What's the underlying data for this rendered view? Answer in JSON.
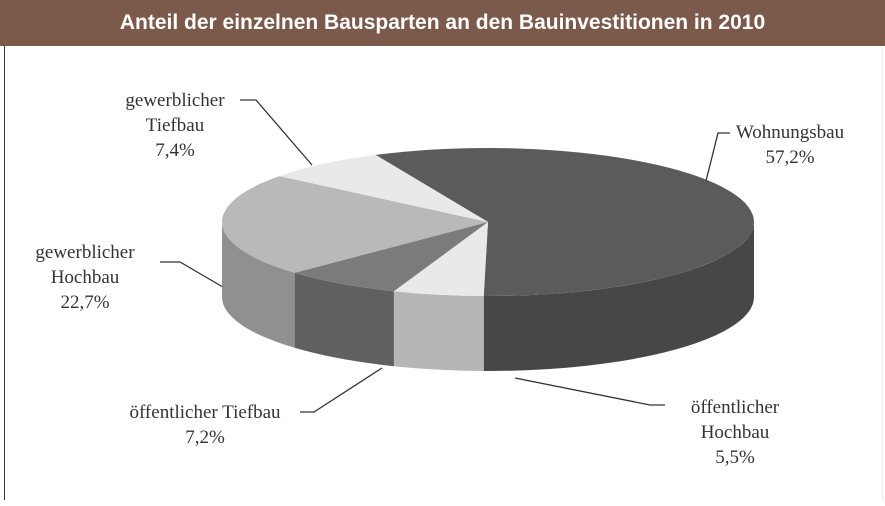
{
  "chart_data": {
    "type": "pie3d",
    "title": "Anteil der einzelnen Bausparten an den Bauinvestitionen in 2010",
    "categories": [
      "Wohnungsbau",
      "öffentlicher Hochbau",
      "öffentlicher Tiefbau",
      "gewerblicher Hochbau",
      "gewerblicher Tiefbau"
    ],
    "values": [
      57.2,
      5.5,
      7.2,
      22.7,
      7.4
    ],
    "value_labels": [
      "57,2%",
      "5,5%",
      "7,2%",
      "22,7%",
      "7,4%"
    ],
    "colors": [
      "#5b5b5b",
      "#e9e9e9",
      "#7b7b7b",
      "#b9b9b9",
      "#e9e9e9"
    ]
  }
}
